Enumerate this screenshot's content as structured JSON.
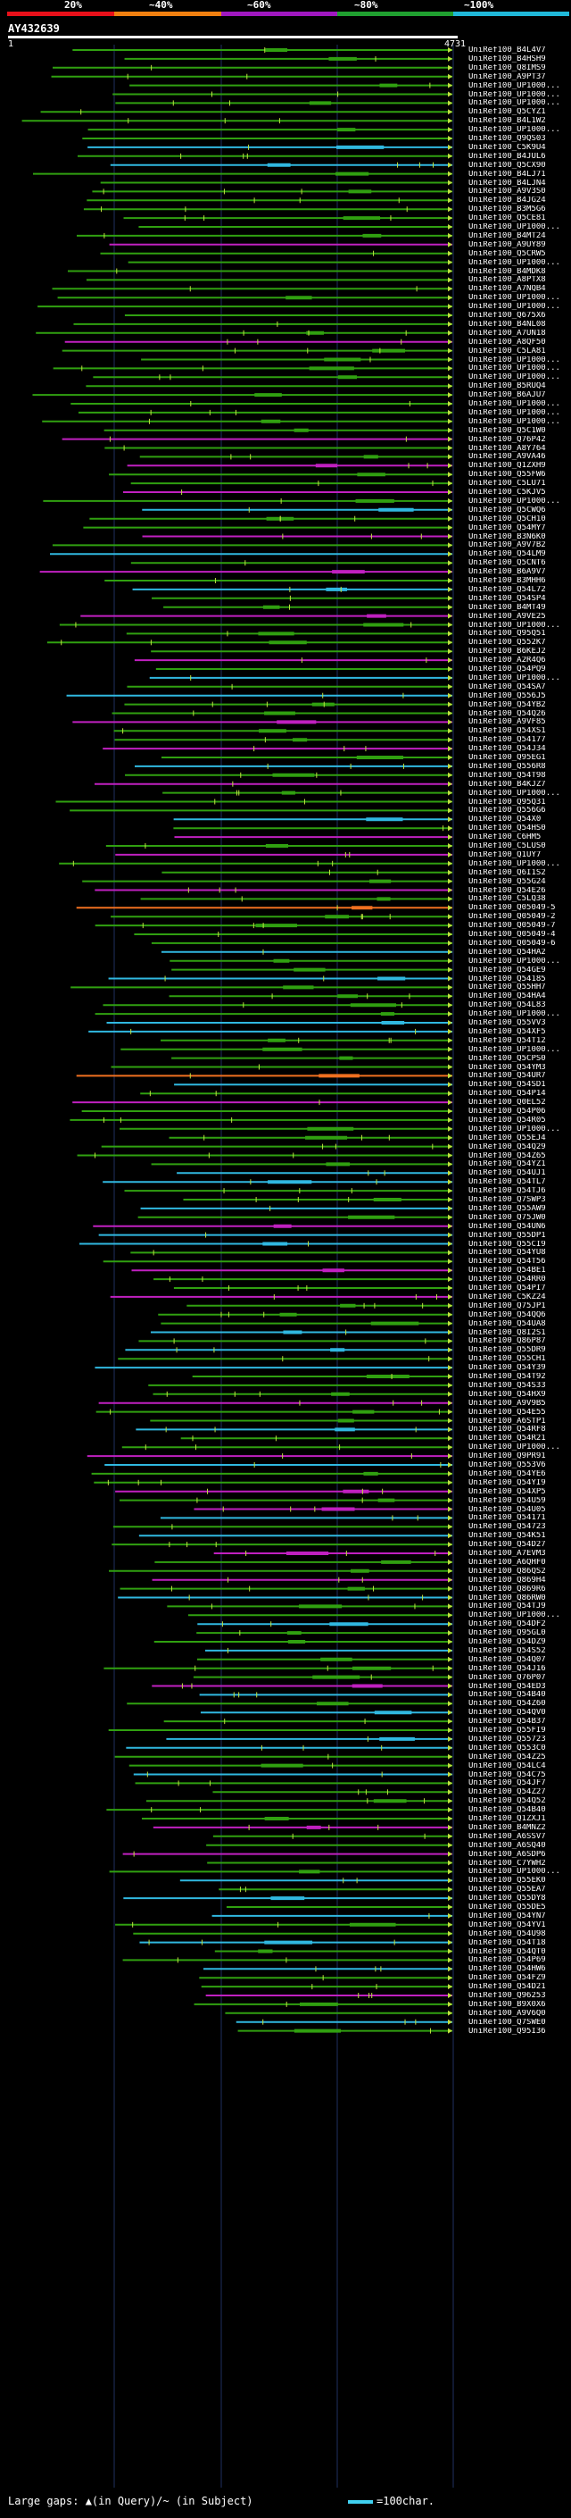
{
  "scale": {
    "labels": [
      "20%",
      "~40%",
      "~60%",
      "~80%",
      "~100%"
    ],
    "colors": [
      "#e8101a",
      "#f08010",
      "#a018c0",
      "#20a030",
      "#20b8d8"
    ]
  },
  "query": {
    "id": "AY432639",
    "start": "1",
    "end": "4731",
    "bar_color": "#ffffff"
  },
  "colors": {
    "line_green": "#30a010",
    "line_blue": "#30b8e0",
    "line_purple": "#c020c0",
    "line_orange": "#f07020",
    "gap_marker": "#c0e040",
    "background": "#000000",
    "gridline": "#203060"
  },
  "hits": [
    {
      "label": "UniRef100_B4L4V7",
      "color": "green"
    },
    {
      "label": "UniRef100_B4HSH9",
      "color": "green"
    },
    {
      "label": "UniRef100_Q8IMS9",
      "color": "green"
    },
    {
      "label": "UniRef100_A9PT37",
      "color": "green"
    },
    {
      "label": "UniRef100_UP1000...",
      "color": "green"
    },
    {
      "label": "UniRef100_UP1000...",
      "color": "green"
    },
    {
      "label": "UniRef100_UP1000...",
      "color": "green"
    },
    {
      "label": "UniRef100_Q5CYZ1",
      "color": "green"
    },
    {
      "label": "UniRef100_B4L1W2",
      "color": "green"
    },
    {
      "label": "UniRef100_UP1000...",
      "color": "green"
    },
    {
      "label": "UniRef100_Q9QS03",
      "color": "green"
    },
    {
      "label": "UniRef100_C5K9U4",
      "color": "blue"
    },
    {
      "label": "UniRef100_B4JUL6",
      "color": "green"
    },
    {
      "label": "UniRef100_Q5CX90",
      "color": "blue"
    },
    {
      "label": "UniRef100_B4LJ71",
      "color": "green"
    },
    {
      "label": "UniRef100_B4LJN4",
      "color": "green"
    },
    {
      "label": "UniRef100_A9V3S0",
      "color": "green"
    },
    {
      "label": "UniRef100_B4JG24",
      "color": "green"
    },
    {
      "label": "UniRef100_B3M5G6",
      "color": "green"
    },
    {
      "label": "UniRef100_Q5CE81",
      "color": "green"
    },
    {
      "label": "UniRef100_UP1000...",
      "color": "green"
    },
    {
      "label": "UniRef100_B4MT24",
      "color": "green"
    },
    {
      "label": "UniRef100_A9UY89",
      "color": "purple"
    },
    {
      "label": "UniRef100_Q5CRW5",
      "color": "green"
    },
    {
      "label": "UniRef100_UP1000...",
      "color": "green"
    },
    {
      "label": "UniRef100_B4MDK8",
      "color": "green"
    },
    {
      "label": "UniRef100_A8PTX8",
      "color": "green"
    },
    {
      "label": "UniRef100_A7NQB4",
      "color": "green"
    },
    {
      "label": "UniRef100_UP1000...",
      "color": "green"
    },
    {
      "label": "UniRef100_UP1000...",
      "color": "green"
    },
    {
      "label": "UniRef100_Q675X6",
      "color": "green"
    },
    {
      "label": "UniRef100_B4NL08",
      "color": "green"
    },
    {
      "label": "UniRef100_A7UN18",
      "color": "green"
    },
    {
      "label": "UniRef100_A8QF50",
      "color": "purple"
    },
    {
      "label": "UniRef100_C5LA81",
      "color": "green"
    },
    {
      "label": "UniRef100_UP1000...",
      "color": "green"
    },
    {
      "label": "UniRef100_UP1000...",
      "color": "green"
    },
    {
      "label": "UniRef100_UP1000...",
      "color": "green"
    },
    {
      "label": "UniRef100_B5RUQ4",
      "color": "green"
    },
    {
      "label": "UniRef100_B6AJU7",
      "color": "green"
    },
    {
      "label": "UniRef100_UP1000...",
      "color": "green"
    },
    {
      "label": "UniRef100_UP1000...",
      "color": "green"
    },
    {
      "label": "UniRef100_UP1000...",
      "color": "green"
    },
    {
      "label": "UniRef100_Q5C1W0",
      "color": "green"
    },
    {
      "label": "UniRef100_Q76P42",
      "color": "purple"
    },
    {
      "label": "UniRef100_A8Y764",
      "color": "green"
    },
    {
      "label": "UniRef100_A9VA46",
      "color": "green"
    },
    {
      "label": "UniRef100_Q1ZXH9",
      "color": "purple"
    },
    {
      "label": "UniRef100_Q55FW6",
      "color": "green"
    },
    {
      "label": "UniRef100_C5LU71",
      "color": "green"
    },
    {
      "label": "UniRef100_C5KJV5",
      "color": "purple"
    },
    {
      "label": "UniRef100_UP1000...",
      "color": "green"
    },
    {
      "label": "UniRef100_Q5CWQ6",
      "color": "blue"
    },
    {
      "label": "UniRef100_Q5CH10",
      "color": "green"
    },
    {
      "label": "UniRef100_Q54MY7",
      "color": "green"
    },
    {
      "label": "UniRef100_B3N6K0",
      "color": "purple"
    },
    {
      "label": "UniRef100_A9V7B2",
      "color": "green"
    },
    {
      "label": "UniRef100_Q54LM9",
      "color": "blue"
    },
    {
      "label": "UniRef100_Q5CNT6",
      "color": "green"
    },
    {
      "label": "UniRef100_B6A9V7",
      "color": "purple"
    },
    {
      "label": "UniRef100_B3MHH6",
      "color": "green"
    },
    {
      "label": "UniRef100_Q54L72",
      "color": "blue"
    },
    {
      "label": "UniRef100_Q54SP4",
      "color": "green"
    },
    {
      "label": "UniRef100_B4MT49",
      "color": "green"
    },
    {
      "label": "UniRef100_A9VE25",
      "color": "purple"
    },
    {
      "label": "UniRef100_UP1000...",
      "color": "green"
    },
    {
      "label": "UniRef100_Q95Q51",
      "color": "green"
    },
    {
      "label": "UniRef100_Q552K7",
      "color": "green"
    },
    {
      "label": "UniRef100_B6KEJ2",
      "color": "green"
    },
    {
      "label": "UniRef100_A2R4Q6",
      "color": "purple"
    },
    {
      "label": "UniRef100_Q54PQ9",
      "color": "green"
    },
    {
      "label": "UniRef100_UP1000...",
      "color": "blue"
    },
    {
      "label": "UniRef100_Q54SA7",
      "color": "green"
    },
    {
      "label": "UniRef100_Q556J5",
      "color": "blue"
    },
    {
      "label": "UniRef100_Q54YB2",
      "color": "green"
    },
    {
      "label": "UniRef100_Q54Q26",
      "color": "green"
    },
    {
      "label": "UniRef100_A9VF85",
      "color": "purple"
    },
    {
      "label": "UniRef100_Q54XS1",
      "color": "green"
    },
    {
      "label": "UniRef100_Q54177",
      "color": "green"
    },
    {
      "label": "UniRef100_Q54J34",
      "color": "purple"
    },
    {
      "label": "UniRef100_Q95EG1",
      "color": "green"
    },
    {
      "label": "UniRef100_Q556R8",
      "color": "blue"
    },
    {
      "label": "UniRef100_Q54T98",
      "color": "green"
    },
    {
      "label": "UniRef100_B4KJZ7",
      "color": "purple"
    },
    {
      "label": "UniRef100_UP1000...",
      "color": "green"
    },
    {
      "label": "UniRef100_Q95Q31",
      "color": "green"
    },
    {
      "label": "UniRef100_Q556G6",
      "color": "green"
    },
    {
      "label": "UniRef100_Q54X0",
      "color": "blue"
    },
    {
      "label": "UniRef100_Q54HS0",
      "color": "green"
    },
    {
      "label": "UniRef100_C6HM5",
      "color": "purple"
    },
    {
      "label": "UniRef100_C5LUS0",
      "color": "green"
    },
    {
      "label": "UniRef100_Q1UY7",
      "color": "purple"
    },
    {
      "label": "UniRef100_UP1000...",
      "color": "green"
    },
    {
      "label": "UniRef100_Q6I1S2",
      "color": "green"
    },
    {
      "label": "UniRef100_Q55G24",
      "color": "green"
    },
    {
      "label": "UniRef100_Q54E26",
      "color": "purple"
    },
    {
      "label": "UniRef100_C5LQ38",
      "color": "green"
    },
    {
      "label": "UniRef100_Q05049-5",
      "color": "orange"
    },
    {
      "label": "UniRef100_Q05049-2",
      "color": "green"
    },
    {
      "label": "UniRef100_Q05049-7",
      "color": "green"
    },
    {
      "label": "UniRef100_Q05049-4",
      "color": "green"
    },
    {
      "label": "UniRef100_Q05049-6",
      "color": "green"
    },
    {
      "label": "UniRef100_Q54HA2",
      "color": "blue"
    },
    {
      "label": "UniRef100_UP1000...",
      "color": "green"
    },
    {
      "label": "UniRef100_Q54GE9",
      "color": "green"
    },
    {
      "label": "UniRef100_Q54185",
      "color": "blue"
    },
    {
      "label": "UniRef100_Q55HH7",
      "color": "green"
    },
    {
      "label": "UniRef100_Q54HA4",
      "color": "green"
    },
    {
      "label": "UniRef100_Q54L83",
      "color": "green"
    },
    {
      "label": "UniRef100_UP1000...",
      "color": "green"
    },
    {
      "label": "UniRef100_Q55VV3",
      "color": "blue"
    },
    {
      "label": "UniRef100_Q54XF5",
      "color": "blue"
    },
    {
      "label": "UniRef100_Q54T12",
      "color": "green"
    },
    {
      "label": "UniRef100_UP1000...",
      "color": "green"
    },
    {
      "label": "UniRef100_Q5CPS0",
      "color": "green"
    },
    {
      "label": "UniRef100_Q54YM3",
      "color": "green"
    },
    {
      "label": "UniRef100_Q54UR7",
      "color": "orange"
    },
    {
      "label": "UniRef100_Q54SD1",
      "color": "blue"
    },
    {
      "label": "UniRef100_Q54P14",
      "color": "green"
    },
    {
      "label": "UniRef100_Q0EL52",
      "color": "purple"
    },
    {
      "label": "UniRef100_Q54P06",
      "color": "green"
    },
    {
      "label": "UniRef100_Q54R05",
      "color": "green"
    },
    {
      "label": "UniRef100_UP1000...",
      "color": "green"
    },
    {
      "label": "UniRef100_Q55EJ4",
      "color": "green"
    },
    {
      "label": "UniRef100_Q54Q29",
      "color": "green"
    },
    {
      "label": "UniRef100_Q54Z65",
      "color": "green"
    },
    {
      "label": "UniRef100_Q54YZ1",
      "color": "green"
    },
    {
      "label": "UniRef100_Q54UJ1",
      "color": "blue"
    },
    {
      "label": "UniRef100_Q54TL7",
      "color": "blue"
    },
    {
      "label": "UniRef100_Q54TJ6",
      "color": "green"
    },
    {
      "label": "UniRef100_Q7SWP3",
      "color": "green"
    },
    {
      "label": "UniRef100_Q55AW9",
      "color": "blue"
    },
    {
      "label": "UniRef100_Q75JW0",
      "color": "green"
    },
    {
      "label": "UniRef100_Q54UN6",
      "color": "purple"
    },
    {
      "label": "UniRef100_Q55DP1",
      "color": "blue"
    },
    {
      "label": "UniRef100_Q55CI9",
      "color": "blue"
    },
    {
      "label": "UniRef100_Q54YU8",
      "color": "green"
    },
    {
      "label": "UniRef100_Q54T56",
      "color": "green"
    },
    {
      "label": "UniRef100_Q54BE1",
      "color": "purple"
    },
    {
      "label": "UniRef100_Q54RR0",
      "color": "green"
    },
    {
      "label": "UniRef100_Q54PI7",
      "color": "green"
    },
    {
      "label": "UniRef100_C5KZ24",
      "color": "purple"
    },
    {
      "label": "UniRef100_Q75JP1",
      "color": "green"
    },
    {
      "label": "UniRef100_Q54QQ6",
      "color": "green"
    },
    {
      "label": "UniRef100_Q54UA8",
      "color": "green"
    },
    {
      "label": "UniRef100_Q8I2S1",
      "color": "blue"
    },
    {
      "label": "UniRef100_Q86P87",
      "color": "green"
    },
    {
      "label": "UniRef100_Q55DR9",
      "color": "blue"
    },
    {
      "label": "UniRef100_Q55CH1",
      "color": "green"
    },
    {
      "label": "UniRef100_Q54Y39",
      "color": "blue"
    },
    {
      "label": "UniRef100_Q54T92",
      "color": "green"
    },
    {
      "label": "UniRef100_Q54S33",
      "color": "green"
    },
    {
      "label": "UniRef100_Q54HX9",
      "color": "green"
    },
    {
      "label": "UniRef100_A9V9B5",
      "color": "purple"
    },
    {
      "label": "UniRef100_Q54E55",
      "color": "green"
    },
    {
      "label": "UniRef100_A6STP1",
      "color": "green"
    },
    {
      "label": "UniRef100_Q54RF8",
      "color": "blue"
    },
    {
      "label": "UniRef100_Q54R21",
      "color": "green"
    },
    {
      "label": "UniRef100_UP1000...",
      "color": "green"
    },
    {
      "label": "UniRef100_Q9PR91",
      "color": "purple"
    },
    {
      "label": "UniRef100_Q553V6",
      "color": "blue"
    },
    {
      "label": "UniRef100_Q54YE6",
      "color": "green"
    },
    {
      "label": "UniRef100_Q54YI9",
      "color": "green"
    },
    {
      "label": "UniRef100_Q54XP5",
      "color": "purple"
    },
    {
      "label": "UniRef100_Q54U59",
      "color": "green"
    },
    {
      "label": "UniRef100_Q54U05",
      "color": "purple"
    },
    {
      "label": "UniRef100_Q54171",
      "color": "blue"
    },
    {
      "label": "UniRef100_Q54723",
      "color": "green"
    },
    {
      "label": "UniRef100_Q54K51",
      "color": "blue"
    },
    {
      "label": "UniRef100_Q54D27",
      "color": "green"
    },
    {
      "label": "UniRef100_A7EVM3",
      "color": "purple"
    },
    {
      "label": "UniRef100_A6QHF0",
      "color": "green"
    },
    {
      "label": "UniRef100_Q86QS2",
      "color": "green"
    },
    {
      "label": "UniRef100_Q869H4",
      "color": "purple"
    },
    {
      "label": "UniRef100_Q869R6",
      "color": "green"
    },
    {
      "label": "UniRef100_Q86RW0",
      "color": "blue"
    },
    {
      "label": "UniRef100_Q54TJ9",
      "color": "green"
    },
    {
      "label": "UniRef100_UP1000...",
      "color": "green"
    },
    {
      "label": "UniRef100_Q54DF2",
      "color": "blue"
    },
    {
      "label": "UniRef100_Q95GL0",
      "color": "green"
    },
    {
      "label": "UniRef100_Q54DZ9",
      "color": "green"
    },
    {
      "label": "UniRef100_Q54S52",
      "color": "blue"
    },
    {
      "label": "UniRef100_Q54Q07",
      "color": "green"
    },
    {
      "label": "UniRef100_Q54J16",
      "color": "green"
    },
    {
      "label": "UniRef100_Q76P07",
      "color": "green"
    },
    {
      "label": "UniRef100_Q54ED3",
      "color": "purple"
    },
    {
      "label": "UniRef100_Q54B40",
      "color": "blue"
    },
    {
      "label": "UniRef100_Q54Z60",
      "color": "green"
    },
    {
      "label": "UniRef100_Q54QV0",
      "color": "blue"
    },
    {
      "label": "UniRef100_Q54B37",
      "color": "green"
    },
    {
      "label": "UniRef100_Q55FI9",
      "color": "green"
    },
    {
      "label": "UniRef100_Q55723",
      "color": "blue"
    },
    {
      "label": "UniRef100_Q553C0",
      "color": "blue"
    },
    {
      "label": "UniRef100_Q54Z25",
      "color": "green"
    },
    {
      "label": "UniRef100_Q54LC4",
      "color": "green"
    },
    {
      "label": "UniRef100_Q54C75",
      "color": "blue"
    },
    {
      "label": "UniRef100_Q54JF7",
      "color": "green"
    },
    {
      "label": "UniRef100_Q54Z27",
      "color": "green"
    },
    {
      "label": "UniRef100_Q54Q52",
      "color": "green"
    },
    {
      "label": "UniRef100_Q54B40",
      "color": "green"
    },
    {
      "label": "UniRef100_Q1ZXJ1",
      "color": "green"
    },
    {
      "label": "UniRef100_B4MNZ2",
      "color": "purple"
    },
    {
      "label": "UniRef100_A6SSV7",
      "color": "green"
    },
    {
      "label": "UniRef100_A6SQ40",
      "color": "green"
    },
    {
      "label": "UniRef100_A6SDP6",
      "color": "purple"
    },
    {
      "label": "UniRef100_C7YWH2",
      "color": "green"
    },
    {
      "label": "UniRef100_UP1000...",
      "color": "green"
    },
    {
      "label": "UniRef100_Q55EK0",
      "color": "blue"
    },
    {
      "label": "UniRef100_Q55EA7",
      "color": "green"
    },
    {
      "label": "UniRef100_Q55DY8",
      "color": "blue"
    },
    {
      "label": "UniRef100_Q55DE5",
      "color": "green"
    },
    {
      "label": "UniRef100_Q54YN7",
      "color": "blue"
    },
    {
      "label": "UniRef100_Q54YV1",
      "color": "green"
    },
    {
      "label": "UniRef100_Q54U98",
      "color": "green"
    },
    {
      "label": "UniRef100_Q54T18",
      "color": "blue"
    },
    {
      "label": "UniRef100_Q54QT0",
      "color": "green"
    },
    {
      "label": "UniRef100_Q54P69",
      "color": "green"
    },
    {
      "label": "UniRef100_Q54HW6",
      "color": "blue"
    },
    {
      "label": "UniRef100_Q54FZ9",
      "color": "green"
    },
    {
      "label": "UniRef100_Q54D21",
      "color": "green"
    },
    {
      "label": "UniRef100_Q96253",
      "color": "purple"
    },
    {
      "label": "UniRef100_B9X0X6",
      "color": "green"
    },
    {
      "label": "UniRef100_A9V6Q0",
      "color": "green"
    },
    {
      "label": "UniRef100_Q7SWE0",
      "color": "blue"
    },
    {
      "label": "UniRef100_Q95I36",
      "color": "green"
    }
  ],
  "legend": {
    "left_text": "Large gaps: ▲(in Query)/~ (in Subject)",
    "right_text": "=100char."
  }
}
